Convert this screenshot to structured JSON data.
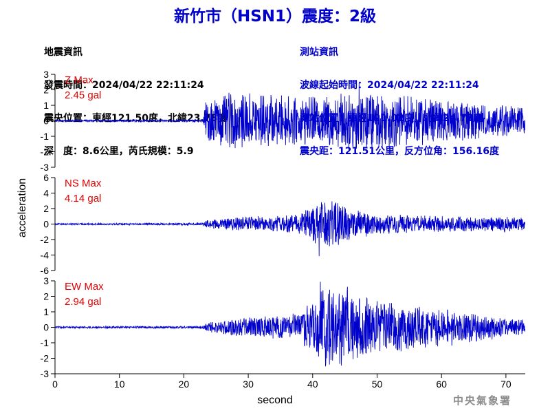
{
  "header": {
    "title": "新竹市（HSN1）震度：2級"
  },
  "quake_info": {
    "heading": "地震資訊",
    "origin_time": "發震時間：2024/04/22 22:11:24",
    "epicenter": "震央位置：東經121.50度，北緯23.78度",
    "depth_magnitude": "深　度：8.6公里，芮氏規模：5.9"
  },
  "station_info": {
    "heading": "測站資訊",
    "wave_start": "波線起始時間：2024/04/22 22:11:24",
    "station_location": "測站位置：東經121.02度，北緯24.78度",
    "distance_azimuth": "震央距：121.51公里，反方位角：156.16度"
  },
  "watermark": "中央氣象署",
  "chart_data": [
    {
      "type": "line",
      "component": "Z",
      "label": "Z Max",
      "max_text": "2.45 gal",
      "max": 2.45,
      "xlim": [
        0,
        73
      ],
      "ylim": [
        -3,
        3
      ],
      "yticks": [
        -3,
        -2,
        -1,
        0,
        1,
        2,
        3
      ],
      "onset": 23.2,
      "peak_time": 47.2,
      "envelope": [
        [
          0,
          0.06
        ],
        [
          23.0,
          0.07
        ],
        [
          23.4,
          1.4
        ],
        [
          26,
          1.7
        ],
        [
          30,
          1.8
        ],
        [
          35,
          1.6
        ],
        [
          40,
          1.5
        ],
        [
          44,
          1.7
        ],
        [
          47,
          2.2
        ],
        [
          50,
          1.8
        ],
        [
          55,
          1.6
        ],
        [
          60,
          1.4
        ],
        [
          65,
          1.2
        ],
        [
          70,
          1.0
        ],
        [
          73,
          0.9
        ]
      ],
      "color": "#0000cc"
    },
    {
      "type": "line",
      "component": "NS",
      "label": "NS Max",
      "max_text": "4.14 gal",
      "max": 4.14,
      "xlim": [
        0,
        73
      ],
      "ylim": [
        -6,
        6
      ],
      "yticks": [
        -6,
        -4,
        -2,
        0,
        2,
        4,
        6
      ],
      "onset": 23.0,
      "peak_time": 41.0,
      "envelope": [
        [
          0,
          0.1
        ],
        [
          22.5,
          0.15
        ],
        [
          24,
          0.6
        ],
        [
          30,
          1.0
        ],
        [
          35,
          1.0
        ],
        [
          38,
          1.4
        ],
        [
          40,
          2.5
        ],
        [
          41,
          3.6
        ],
        [
          42.5,
          2.8
        ],
        [
          44,
          3.2
        ],
        [
          45,
          2.6
        ],
        [
          47,
          1.8
        ],
        [
          50,
          1.3
        ],
        [
          55,
          1.1
        ],
        [
          60,
          1.0
        ],
        [
          65,
          0.9
        ],
        [
          70,
          1.0
        ],
        [
          73,
          0.8
        ]
      ],
      "color": "#0000cc"
    },
    {
      "type": "line",
      "component": "EW",
      "label": "EW Max",
      "max_text": "2.94 gal",
      "max": 2.94,
      "xlim": [
        0,
        73
      ],
      "ylim": [
        -3,
        3
      ],
      "yticks": [
        -3,
        -2,
        -1,
        0,
        1,
        2,
        3
      ],
      "onset": 23.0,
      "peak_time": 41.2,
      "envelope": [
        [
          0,
          0.06
        ],
        [
          22.5,
          0.08
        ],
        [
          24,
          0.3
        ],
        [
          28,
          0.55
        ],
        [
          33,
          0.7
        ],
        [
          38,
          0.9
        ],
        [
          40,
          1.8
        ],
        [
          42,
          2.5
        ],
        [
          44,
          2.6
        ],
        [
          46,
          2.5
        ],
        [
          48,
          2.0
        ],
        [
          52,
          1.6
        ],
        [
          56,
          1.4
        ],
        [
          60,
          1.2
        ],
        [
          65,
          1.0
        ],
        [
          70,
          0.6
        ],
        [
          73,
          0.5
        ]
      ],
      "color": "#0000cc"
    }
  ],
  "axes": {
    "ylabel": "acceleration",
    "xlabel": "second",
    "xticks": [
      0,
      10,
      20,
      30,
      40,
      50,
      60,
      70
    ]
  }
}
